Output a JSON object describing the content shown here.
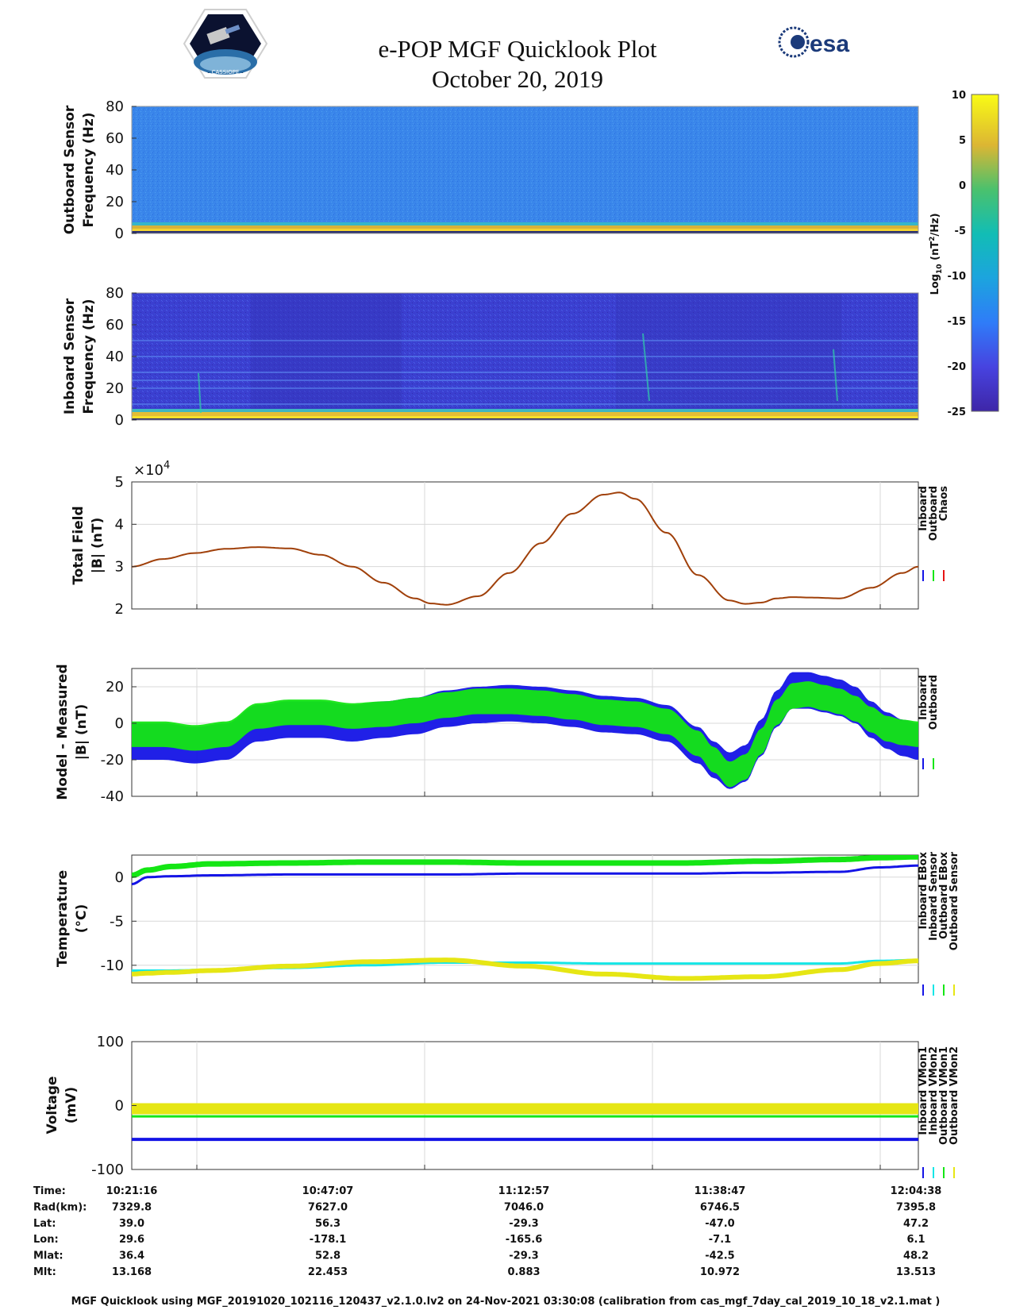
{
  "header": {
    "title": "e-POP MGF Quicklook Plot",
    "date": "October 20, 2019",
    "left_logo": "cassiope-mission-logo",
    "left_logo_text": "CASSIOPE",
    "right_logo_text": "esa"
  },
  "colors": {
    "inboard": "#1414e6",
    "outboard": "#14e614",
    "chaos": "#e61414",
    "total_field_line": "#a0400a",
    "inboard_sensor_temp": "#14e6e6",
    "outboard_sensor_temp": "#e6e614",
    "grid": "#d8d8d8"
  },
  "chart_data": [
    {
      "id": "outboard_spectrogram",
      "type": "heatmap",
      "ylabel_line1": "Outboard Sensor",
      "ylabel_line2": "Frequency (Hz)",
      "ylim": [
        0,
        80
      ],
      "yticks": [
        "80",
        "60",
        "40",
        "20",
        "0"
      ],
      "description_bands": "strong low-frequency band 0-4 Hz across the whole pass"
    },
    {
      "id": "inboard_spectrogram",
      "type": "heatmap",
      "ylabel_line1": "Inboard Sensor",
      "ylabel_line2": "Frequency (Hz)",
      "ylim": [
        0,
        80
      ],
      "yticks": [
        "80",
        "60",
        "40",
        "20",
        "0"
      ],
      "harmonic_lines_hz": [
        10,
        20,
        25,
        30,
        40,
        50
      ]
    },
    {
      "id": "colorbar",
      "type": "heatmap",
      "label": "Log10 (nT2/Hz)",
      "label_main": "Log",
      "label_sub": "10",
      "label_unit": " (nT",
      "label_sup": "2",
      "label_end": "/Hz)",
      "range": [
        -25,
        10
      ],
      "ticks": [
        "10",
        "5",
        "0",
        "-5",
        "-10",
        "-15",
        "-20",
        "-25"
      ]
    },
    {
      "id": "total_field",
      "type": "line",
      "ylabel_line1": "Total Field",
      "ylabel_line2": "|B| (nT)",
      "ylim": [
        2,
        5
      ],
      "yticks": [
        "5",
        "4",
        "3",
        "2"
      ],
      "exponent_prefix": "×10",
      "exponent_power": "4",
      "x": [
        0,
        0.04,
        0.08,
        0.12,
        0.16,
        0.2,
        0.24,
        0.28,
        0.32,
        0.36,
        0.38,
        0.4,
        0.44,
        0.48,
        0.52,
        0.56,
        0.6,
        0.62,
        0.64,
        0.68,
        0.72,
        0.76,
        0.78,
        0.8,
        0.82,
        0.84,
        0.86,
        0.9,
        0.94,
        0.98,
        1.0
      ],
      "values": [
        3.0,
        3.18,
        3.32,
        3.42,
        3.46,
        3.43,
        3.28,
        3.0,
        2.62,
        2.25,
        2.13,
        2.1,
        2.3,
        2.85,
        3.55,
        4.25,
        4.7,
        4.75,
        4.6,
        3.8,
        2.8,
        2.2,
        2.12,
        2.15,
        2.25,
        2.28,
        2.27,
        2.25,
        2.5,
        2.85,
        3.0
      ],
      "legend": [
        "Inboard",
        "Outboard",
        "Chaos"
      ]
    },
    {
      "id": "model_minus_measured",
      "type": "line",
      "ylabel_line1": "Model - Measured",
      "ylabel_line2": "|B| (nT)",
      "ylim": [
        -40,
        30
      ],
      "yticks": [
        "20",
        "0",
        "-20",
        "-40"
      ],
      "x": [
        0,
        0.04,
        0.08,
        0.12,
        0.16,
        0.2,
        0.24,
        0.28,
        0.32,
        0.36,
        0.4,
        0.44,
        0.48,
        0.52,
        0.56,
        0.6,
        0.64,
        0.68,
        0.72,
        0.74,
        0.76,
        0.78,
        0.8,
        0.82,
        0.84,
        0.86,
        0.88,
        0.9,
        0.92,
        0.94,
        0.96,
        0.98,
        1.0
      ],
      "series": [
        {
          "name": "Inboard",
          "center": [
            -10,
            -10,
            -12,
            -10,
            0,
            2,
            2,
            0,
            2,
            4,
            8,
            10,
            11,
            10,
            8,
            5,
            4,
            0,
            -12,
            -20,
            -26,
            -22,
            -8,
            8,
            18,
            18,
            16,
            14,
            10,
            2,
            -4,
            -8,
            -10
          ],
          "halfwidth": 10
        },
        {
          "name": "Outboard",
          "center": [
            -6,
            -6,
            -8,
            -6,
            4,
            6,
            6,
            4,
            5,
            7,
            10,
            12,
            12,
            11,
            9,
            6,
            5,
            1,
            -11,
            -20,
            -28,
            -24,
            -10,
            6,
            15,
            16,
            14,
            12,
            8,
            2,
            -3,
            -5,
            -6
          ],
          "halfwidth": 7
        }
      ],
      "legend": [
        "Inboard",
        "Outboard"
      ]
    },
    {
      "id": "temperature",
      "type": "line",
      "ylabel_line1": "Temperature",
      "ylabel_line2": "(°C)",
      "ylim": [
        -12,
        2.5
      ],
      "yticks": [
        "0",
        "-5",
        "-10"
      ],
      "x": [
        0,
        0.02,
        0.05,
        0.1,
        0.2,
        0.3,
        0.4,
        0.5,
        0.6,
        0.7,
        0.8,
        0.9,
        0.95,
        1.0
      ],
      "series": [
        {
          "name": "Inboard EBox",
          "values": [
            -0.8,
            0.0,
            0.1,
            0.2,
            0.3,
            0.3,
            0.3,
            0.4,
            0.4,
            0.4,
            0.5,
            0.6,
            1.1,
            1.3
          ]
        },
        {
          "name": "Inboard Sensor",
          "values": [
            -10.6,
            -10.6,
            -10.6,
            -10.5,
            -10.3,
            -10.0,
            -9.7,
            -9.7,
            -9.8,
            -9.8,
            -9.8,
            -9.8,
            -9.5,
            -9.4
          ]
        },
        {
          "name": "Outboard EBox",
          "values": [
            0.2,
            0.8,
            1.2,
            1.5,
            1.6,
            1.7,
            1.7,
            1.6,
            1.6,
            1.6,
            1.8,
            2.0,
            2.2,
            2.3
          ]
        },
        {
          "name": "Outboard Sensor",
          "values": [
            -11.0,
            -10.9,
            -10.8,
            -10.6,
            -10.1,
            -9.6,
            -9.4,
            -10.1,
            -11.0,
            -11.5,
            -11.3,
            -10.5,
            -9.8,
            -9.5
          ]
        }
      ],
      "legend": [
        "Inboard EBox",
        "Inboard Sensor",
        "Outboard EBox",
        "Outboard Sensor"
      ]
    },
    {
      "id": "voltage",
      "type": "line",
      "ylabel_line1": "Voltage",
      "ylabel_line2": "(mV)",
      "ylim": [
        -100,
        100
      ],
      "yticks": [
        "100",
        "0",
        "-100"
      ],
      "series": [
        {
          "name": "Inboard VMon1",
          "level": -53
        },
        {
          "name": "Inboard VMon2",
          "level": -3
        },
        {
          "name": "Outboard VMon1",
          "level": -17
        },
        {
          "name": "Outboard VMon2",
          "level": -5
        }
      ],
      "legend": [
        "Inboard VMon1",
        "Inboard VMon2",
        "Outboard VMon1",
        "Outboard VMon2"
      ]
    }
  ],
  "ephemeris": {
    "row_labels": [
      "Time:",
      "Rad(km):",
      "Lat:",
      "Lon:",
      "Mlat:",
      "Mlt:"
    ],
    "columns": [
      [
        "10:21:16",
        "7329.8",
        "39.0",
        "29.6",
        "36.4",
        "13.168"
      ],
      [
        "10:47:07",
        "7627.0",
        "56.3",
        "-178.1",
        "52.8",
        "22.453"
      ],
      [
        "11:12:57",
        "7046.0",
        "-29.3",
        "-165.6",
        "-29.3",
        "0.883"
      ],
      [
        "11:38:47",
        "6746.5",
        "-47.0",
        "-7.1",
        "-42.5",
        "10.972"
      ],
      [
        "12:04:38",
        "7395.8",
        "47.2",
        "6.1",
        "48.2",
        "13.513"
      ]
    ]
  },
  "footer": "MGF Quicklook using MGF_20191020_102116_120437_v2.1.0.lv2 on 24-Nov-2021 03:30:08 (calibration from cas_mgf_7day_cal_2019_10_18_v2.1.mat )"
}
